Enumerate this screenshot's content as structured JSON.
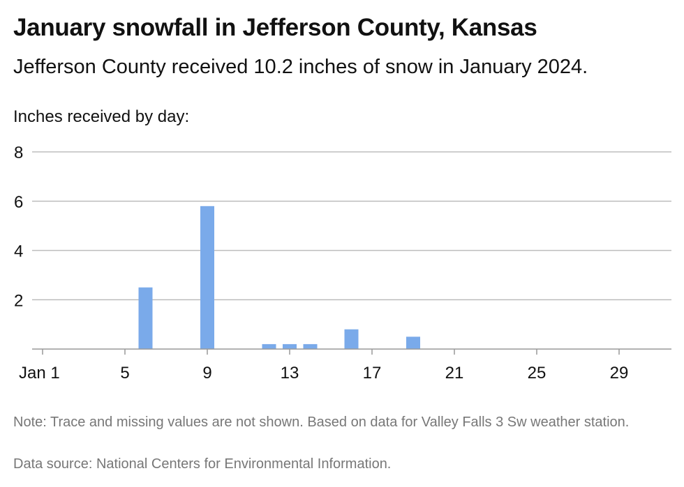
{
  "title": "January snowfall in Jefferson County, Kansas",
  "subtitle": "Jefferson County received 10.2 inches of snow in January 2024.",
  "footer": {
    "note": "Note: Trace and missing values are not shown. Based on data for Valley Falls 3 Sw weather station.",
    "source": "Data source: National Centers for Environmental Information."
  },
  "chart_data": {
    "type": "bar",
    "title": "January snowfall in Jefferson County, Kansas",
    "subtitle": "Jefferson County received 10.2 inches of snow in January 2024.",
    "ylabel": "Inches received by day:",
    "xlabel": "",
    "ylim": [
      0,
      8
    ],
    "yticks": [
      2,
      4,
      6,
      8
    ],
    "xlim": [
      1,
      31
    ],
    "xticks": [
      {
        "day": 1,
        "label": "Jan 1"
      },
      {
        "day": 5,
        "label": "5"
      },
      {
        "day": 9,
        "label": "9"
      },
      {
        "day": 13,
        "label": "13"
      },
      {
        "day": 17,
        "label": "17"
      },
      {
        "day": 21,
        "label": "21"
      },
      {
        "day": 25,
        "label": "25"
      },
      {
        "day": 29,
        "label": "29"
      }
    ],
    "grid": true,
    "bar_color": "#7aaaea",
    "points": [
      {
        "day": 6,
        "value": 2.5
      },
      {
        "day": 9,
        "value": 5.8
      },
      {
        "day": 12,
        "value": 0.2
      },
      {
        "day": 13,
        "value": 0.2
      },
      {
        "day": 14,
        "value": 0.2
      },
      {
        "day": 16,
        "value": 0.8
      },
      {
        "day": 19,
        "value": 0.5
      }
    ]
  }
}
